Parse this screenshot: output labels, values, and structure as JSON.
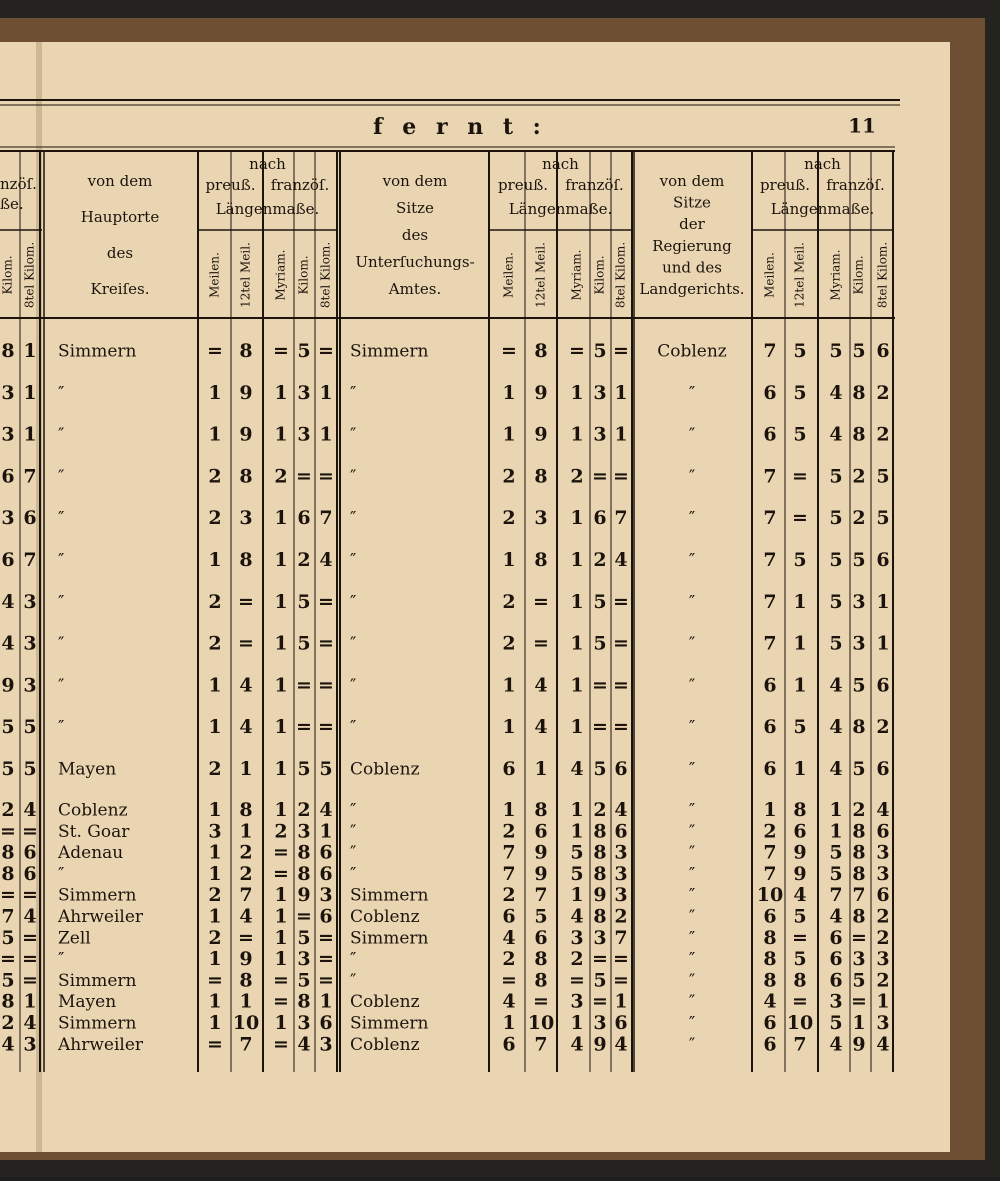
{
  "header": {
    "title": "f e r n t :",
    "page": "11"
  },
  "left_columns": {
    "headers": [
      "nzöſ.",
      "ße.",
      "Kilom.",
      "8tel Kilom."
    ],
    "rows": [
      [
        8,
        1
      ],
      [
        3,
        1
      ],
      [
        3,
        1
      ],
      [
        6,
        7
      ],
      [
        3,
        6
      ],
      [
        6,
        7
      ],
      [
        4,
        3
      ],
      [
        4,
        3
      ],
      [
        9,
        3
      ],
      [
        5,
        5
      ],
      [
        5,
        5
      ],
      [
        2,
        4
      ],
      [
        "=",
        "="
      ],
      [
        8,
        6
      ],
      [
        8,
        6
      ],
      [
        "=",
        "="
      ],
      [
        7,
        4
      ],
      [
        5,
        "="
      ],
      [
        "=",
        "="
      ],
      [
        5,
        "="
      ],
      [
        8,
        1
      ],
      [
        2,
        4
      ],
      [
        4,
        3
      ]
    ]
  },
  "groups": [
    {
      "heading": [
        "von dem",
        "Hauptorte",
        "des",
        "Kreiſes."
      ],
      "nach": "nach",
      "systems": [
        "preuß.",
        "franzöſ."
      ],
      "measure": "Längenmaße.",
      "units": [
        "Meilen.",
        "12tel Meil.",
        "Myriam.",
        "Kilom.",
        "8tel Kilom."
      ],
      "rows": [
        {
          "name": "Simmern",
          "values": [
            "=",
            8,
            "=",
            5,
            "="
          ]
        },
        {
          "name": "″",
          "values": [
            1,
            9,
            1,
            3,
            1
          ]
        },
        {
          "name": "″",
          "values": [
            1,
            9,
            1,
            3,
            1
          ]
        },
        {
          "name": "″",
          "values": [
            2,
            8,
            2,
            "=",
            "="
          ]
        },
        {
          "name": "″",
          "values": [
            2,
            3,
            1,
            6,
            7
          ]
        },
        {
          "name": "″",
          "values": [
            1,
            8,
            1,
            2,
            4
          ]
        },
        {
          "name": "″",
          "values": [
            2,
            "=",
            1,
            5,
            "="
          ]
        },
        {
          "name": "″",
          "values": [
            2,
            "=",
            1,
            5,
            "="
          ]
        },
        {
          "name": "″",
          "values": [
            1,
            4,
            1,
            "=",
            "="
          ]
        },
        {
          "name": "″",
          "values": [
            1,
            4,
            1,
            "=",
            "="
          ]
        },
        {
          "name": "Mayen",
          "values": [
            2,
            1,
            1,
            5,
            5
          ]
        },
        {
          "name": "Coblenz",
          "values": [
            1,
            8,
            1,
            2,
            4
          ]
        },
        {
          "name": "St. Goar",
          "values": [
            3,
            1,
            2,
            3,
            1
          ]
        },
        {
          "name": "Adenau",
          "values": [
            1,
            2,
            "=",
            8,
            6
          ]
        },
        {
          "name": "″",
          "values": [
            1,
            2,
            "=",
            8,
            6
          ]
        },
        {
          "name": "Simmern",
          "values": [
            2,
            7,
            1,
            9,
            3
          ]
        },
        {
          "name": "Ahrweiler",
          "values": [
            1,
            4,
            1,
            "=",
            6
          ]
        },
        {
          "name": "Zell",
          "values": [
            2,
            "=",
            1,
            5,
            "="
          ]
        },
        {
          "name": "″",
          "values": [
            1,
            9,
            1,
            3,
            "="
          ]
        },
        {
          "name": "Simmern",
          "values": [
            "=",
            8,
            "=",
            5,
            "="
          ]
        },
        {
          "name": "Mayen",
          "values": [
            1,
            1,
            "=",
            8,
            1
          ]
        },
        {
          "name": "Simmern",
          "values": [
            1,
            10,
            1,
            3,
            6
          ]
        },
        {
          "name": "Ahrweiler",
          "values": [
            "=",
            7,
            "=",
            4,
            3
          ]
        }
      ]
    },
    {
      "heading": [
        "von dem",
        "Sitze",
        "des",
        "Unterſuchungs-",
        "Amtes."
      ],
      "nach": "nach",
      "systems": [
        "preuß.",
        "franzöſ."
      ],
      "measure": "Längenmaße.",
      "units": [
        "Meilen.",
        "12tel Meil.",
        "Myriam.",
        "Kilom.",
        "8tel Kilom."
      ],
      "rows": [
        {
          "name": "Simmern",
          "values": [
            "=",
            8,
            "=",
            5,
            "="
          ]
        },
        {
          "name": "″",
          "values": [
            1,
            9,
            1,
            3,
            1
          ]
        },
        {
          "name": "″",
          "values": [
            1,
            9,
            1,
            3,
            1
          ]
        },
        {
          "name": "″",
          "values": [
            2,
            8,
            2,
            "=",
            "="
          ]
        },
        {
          "name": "″",
          "values": [
            2,
            3,
            1,
            6,
            7
          ]
        },
        {
          "name": "″",
          "values": [
            1,
            8,
            1,
            2,
            4
          ]
        },
        {
          "name": "″",
          "values": [
            2,
            "=",
            1,
            5,
            "="
          ]
        },
        {
          "name": "″",
          "values": [
            2,
            "=",
            1,
            5,
            "="
          ]
        },
        {
          "name": "″",
          "values": [
            1,
            4,
            1,
            "=",
            "="
          ]
        },
        {
          "name": "″",
          "values": [
            1,
            4,
            1,
            "=",
            "="
          ]
        },
        {
          "name": "Coblenz",
          "values": [
            6,
            1,
            4,
            5,
            6
          ]
        },
        {
          "name": "″",
          "values": [
            1,
            8,
            1,
            2,
            4
          ]
        },
        {
          "name": "″",
          "values": [
            2,
            6,
            1,
            8,
            6
          ]
        },
        {
          "name": "″",
          "values": [
            7,
            9,
            5,
            8,
            3
          ]
        },
        {
          "name": "″",
          "values": [
            7,
            9,
            5,
            8,
            3
          ]
        },
        {
          "name": "Simmern",
          "values": [
            2,
            7,
            1,
            9,
            3
          ]
        },
        {
          "name": "Coblenz",
          "values": [
            6,
            5,
            4,
            8,
            2
          ]
        },
        {
          "name": "Simmern",
          "values": [
            4,
            6,
            3,
            3,
            7
          ]
        },
        {
          "name": "″",
          "values": [
            2,
            8,
            2,
            "=",
            "="
          ]
        },
        {
          "name": "″",
          "values": [
            "=",
            8,
            "=",
            5,
            "="
          ]
        },
        {
          "name": "Coblenz",
          "values": [
            4,
            "=",
            3,
            "=",
            1
          ]
        },
        {
          "name": "Simmern",
          "values": [
            1,
            10,
            1,
            3,
            6
          ]
        },
        {
          "name": "Coblenz",
          "values": [
            6,
            7,
            4,
            9,
            4
          ]
        }
      ]
    },
    {
      "heading": [
        "von dem",
        "Sitze",
        "der",
        "Regierung",
        "und des",
        "Landgerichts."
      ],
      "nach": "nach",
      "systems": [
        "preuß.",
        "franzöſ."
      ],
      "measure": "Längenmaße.",
      "units": [
        "Meilen.",
        "12tel Meil.",
        "Myriam.",
        "Kilom.",
        "8tel Kilom."
      ],
      "rows": [
        {
          "name": "Coblenz",
          "values": [
            7,
            5,
            5,
            5,
            6
          ]
        },
        {
          "name": "″",
          "values": [
            6,
            5,
            4,
            8,
            2
          ]
        },
        {
          "name": "″",
          "values": [
            6,
            5,
            4,
            8,
            2
          ]
        },
        {
          "name": "″",
          "values": [
            7,
            "=",
            5,
            2,
            5
          ]
        },
        {
          "name": "″",
          "values": [
            7,
            "=",
            5,
            2,
            5
          ]
        },
        {
          "name": "″",
          "values": [
            7,
            5,
            5,
            5,
            6
          ]
        },
        {
          "name": "″",
          "values": [
            7,
            1,
            5,
            3,
            1
          ]
        },
        {
          "name": "″",
          "values": [
            7,
            1,
            5,
            3,
            1
          ]
        },
        {
          "name": "″",
          "values": [
            6,
            1,
            4,
            5,
            6
          ]
        },
        {
          "name": "″",
          "values": [
            6,
            5,
            4,
            8,
            2
          ]
        },
        {
          "name": "″",
          "values": [
            6,
            1,
            4,
            5,
            6
          ]
        },
        {
          "name": "″",
          "values": [
            1,
            8,
            1,
            2,
            4
          ]
        },
        {
          "name": "″",
          "values": [
            2,
            6,
            1,
            8,
            6
          ]
        },
        {
          "name": "″",
          "values": [
            7,
            9,
            5,
            8,
            3
          ]
        },
        {
          "name": "″",
          "values": [
            7,
            9,
            5,
            8,
            3
          ]
        },
        {
          "name": "″",
          "values": [
            10,
            4,
            7,
            7,
            6
          ]
        },
        {
          "name": "″",
          "values": [
            6,
            5,
            4,
            8,
            2
          ]
        },
        {
          "name": "″",
          "values": [
            8,
            "=",
            6,
            "=",
            2
          ]
        },
        {
          "name": "″",
          "values": [
            8,
            5,
            6,
            3,
            3
          ]
        },
        {
          "name": "″",
          "values": [
            8,
            8,
            6,
            5,
            2
          ]
        },
        {
          "name": "″",
          "values": [
            4,
            "=",
            3,
            "=",
            1
          ]
        },
        {
          "name": "″",
          "values": [
            6,
            10,
            5,
            1,
            3
          ]
        },
        {
          "name": "″",
          "values": [
            6,
            7,
            4,
            9,
            4
          ]
        }
      ]
    }
  ]
}
